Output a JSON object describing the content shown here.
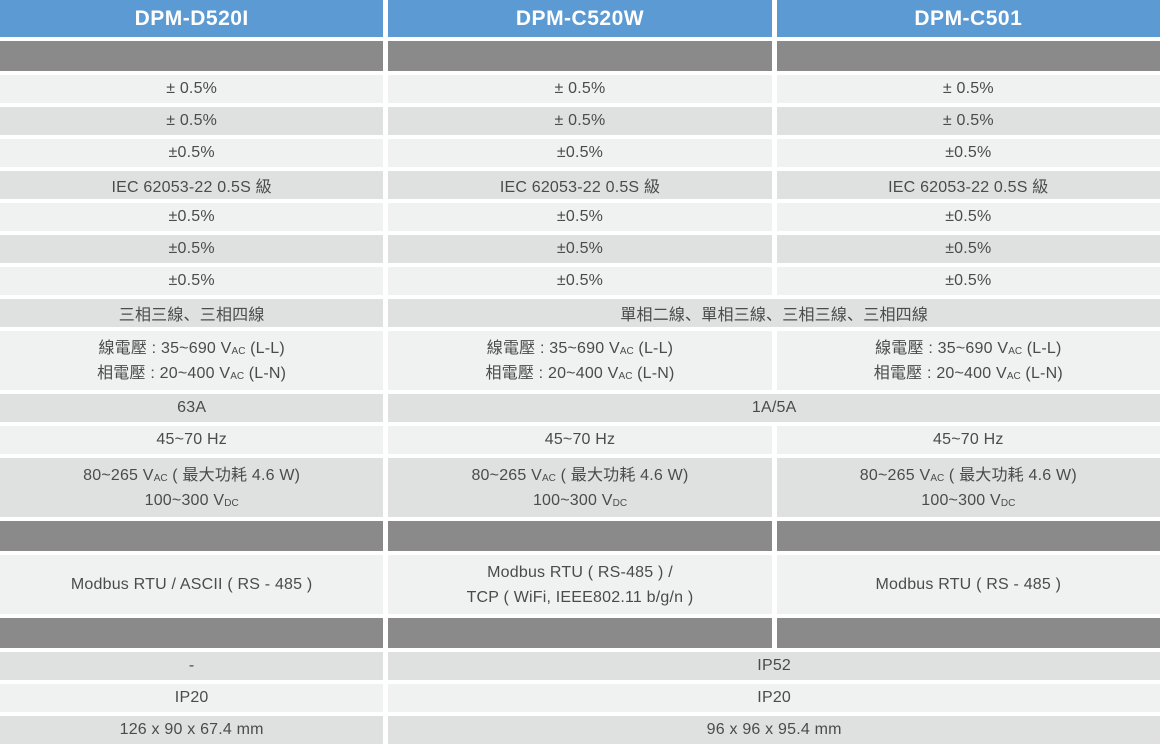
{
  "colors": {
    "header_bg": "#5b9ad2",
    "separator_bg": "#8a8a8a",
    "row_light": "#f0f1f1",
    "row_shade": "#dfe1e1",
    "text": "#4b4b4b",
    "header_text": "#ffffff",
    "page_bg": "#ffffff"
  },
  "header": {
    "columns": [
      "DPM-D520I",
      "DPM-C520W",
      "DPM-C501"
    ]
  },
  "specs": {
    "accuracy": [
      "± 0.5%",
      "± 0.5%",
      "±0.5%",
      "±0.5%",
      "±0.5%",
      "±0.5%"
    ],
    "energy_class": "IEC 62053-22 0.5S 級",
    "wiring": {
      "d520i": "三相三線、三相四線",
      "c520w_c501": "單相二線、單相三線、三相三線、三相四線"
    },
    "voltage_input": {
      "line1_pre": "線電壓 : 35~690 V",
      "line1_sub": "AC",
      "line1_post": " (L-L)",
      "line2_pre": "相電壓 : 20~400 V",
      "line2_sub": "AC",
      "line2_post": " (L-N)"
    },
    "current_input": {
      "d520i": "63A",
      "c520w_c501": "1A/5A"
    },
    "frequency": "45~70 Hz",
    "power_supply": {
      "line1_pre": "80~265 V",
      "line1_sub": "AC",
      "line1_post": " ( 最大功耗 4.6 W)",
      "line2_pre": "100~300 V",
      "line2_sub": "DC"
    },
    "communication": {
      "d520i": "Modbus RTU / ASCII ( RS - 485 )",
      "c520w_line1": "Modbus RTU ( RS-485 ) /",
      "c520w_line2": "TCP ( WiFi, IEEE802.11 b/g/n )",
      "c501": "Modbus RTU ( RS - 485 )"
    },
    "front_protection": {
      "d520i": "-",
      "c520w_c501": "IP52"
    },
    "body_protection": {
      "d520i": "IP20",
      "c520w_c501": "IP20"
    },
    "dimensions": {
      "d520i": "126 x 90 x 67.4 mm",
      "c520w_c501": "96 x 96 x 95.4 mm"
    }
  }
}
